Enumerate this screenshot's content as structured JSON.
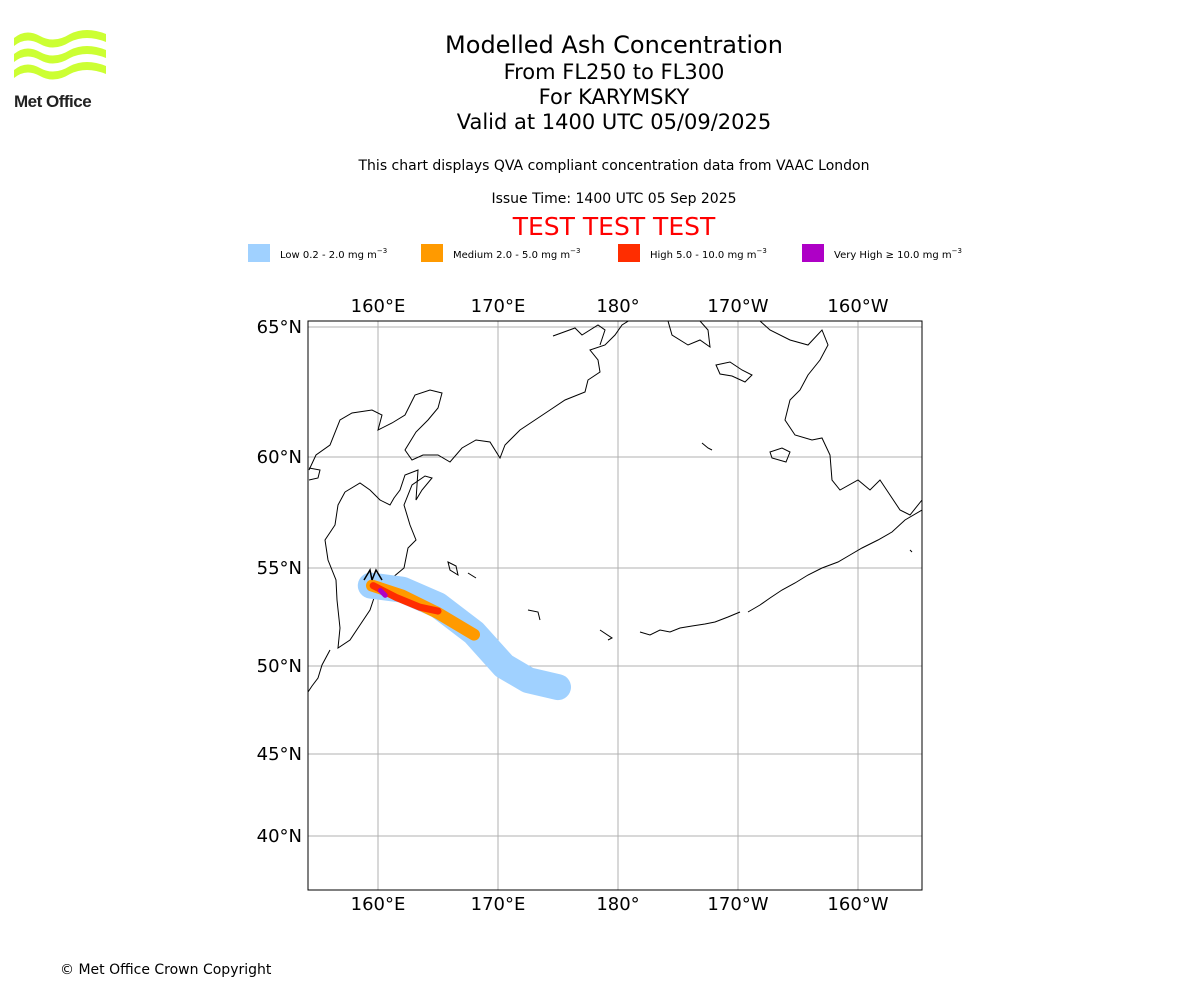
{
  "branding": {
    "logo_text": "Met Office",
    "logo_color": "#ccff33"
  },
  "header": {
    "title": "Modelled Ash Concentration",
    "level_range": "From FL250 to FL300",
    "volcano": "For KARYMSKY",
    "valid_time": "Valid at 1400 UTC 05/09/2025",
    "description": "This chart displays QVA compliant concentration data from VAAC London",
    "issue_time": "Issue Time: 1400 UTC 05 Sep 2025",
    "test_banner": "TEST TEST TEST",
    "test_color": "#ff0000"
  },
  "legend": [
    {
      "label": "Low 0.2 - 2.0 mg m",
      "color": "#a0d1ff"
    },
    {
      "label": "Medium 2.0 - 5.0 mg m",
      "color": "#ff9a00"
    },
    {
      "label": "High 5.0 - 10.0 mg m",
      "color": "#ff2d00"
    },
    {
      "label": "Very High ≥ 10.0 mg m",
      "color": "#ae00c6"
    }
  ],
  "legend_unit_superscript": "−3",
  "map": {
    "lon_ticks": [
      {
        "lon": 160,
        "label": "160°E"
      },
      {
        "lon": 170,
        "label": "170°E"
      },
      {
        "lon": 180,
        "label": "180°"
      },
      {
        "lon": 190,
        "label": "170°W"
      },
      {
        "lon": 200,
        "label": "160°W"
      }
    ],
    "lat_ticks": [
      {
        "lat": 65,
        "label": "65°N"
      },
      {
        "lat": 60,
        "label": "60°N"
      },
      {
        "lat": 55,
        "label": "55°N"
      },
      {
        "lat": 50,
        "label": "50°N"
      },
      {
        "lat": 45,
        "label": "45°N"
      },
      {
        "lat": 40,
        "label": "40°N"
      }
    ],
    "volcano": {
      "name": "KARYMSKY",
      "lat": 54.05,
      "lon": 159.44
    },
    "ash_plume": {
      "low": [
        [
          159.4,
          54.1
        ],
        [
          162.0,
          53.9
        ],
        [
          165.0,
          53.1
        ],
        [
          168.0,
          51.7
        ],
        [
          170.5,
          50.0
        ],
        [
          172.5,
          49.2
        ],
        [
          175.0,
          48.8
        ]
      ],
      "medium": [
        [
          159.5,
          54.1
        ],
        [
          162.0,
          53.6
        ],
        [
          165.0,
          52.7
        ],
        [
          168.0,
          51.6
        ]
      ],
      "high": [
        [
          159.6,
          54.1
        ],
        [
          161.5,
          53.5
        ],
        [
          163.5,
          53.0
        ],
        [
          165.0,
          52.8
        ]
      ],
      "very_high": [
        [
          160.2,
          53.85
        ],
        [
          160.6,
          53.6
        ]
      ]
    },
    "gridline_color": "#b0b0b0",
    "coast_color": "#000000"
  },
  "footer": {
    "copyright": "© Met Office Crown Copyright"
  }
}
